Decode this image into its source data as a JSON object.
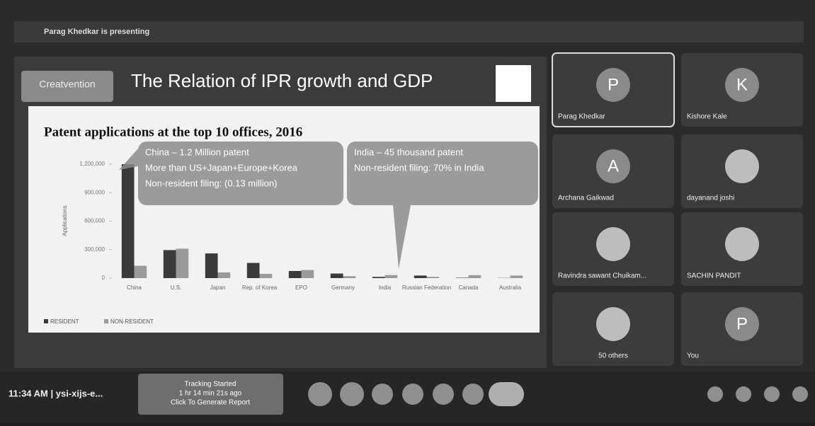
{
  "banner": "Parag Khedkar is presenting",
  "slide": {
    "logo": "Creatvention",
    "title": "The Relation of IPR growth and GDP",
    "callouts": [
      [
        "China – 1.2 Million patent",
        "More than US+Japan+Europe+Korea",
        "Non-resident filing: (0.13 million)"
      ],
      [
        "India – 45 thousand patent",
        "Non-resident filing: 70% in India"
      ]
    ]
  },
  "chart_data": {
    "type": "bar",
    "title": "Patent applications at the top 10 offices, 2016",
    "y_label": "Applications",
    "categories": [
      "China",
      "U.S.",
      "Japan",
      "Rep. of Korea",
      "EPO",
      "Germany",
      "India",
      "Russian Federation",
      "Canada",
      "Australia"
    ],
    "series": [
      {
        "name": "RESIDENT",
        "color": "#3a3a3a",
        "values": [
          1200000,
          295000,
          260000,
          160000,
          75000,
          48000,
          13000,
          27000,
          4000,
          2000
        ]
      },
      {
        "name": "NON-RESIDENT",
        "color": "#9a9a9a",
        "values": [
          130000,
          310000,
          60000,
          45000,
          85000,
          20000,
          32000,
          14000,
          31000,
          27000
        ]
      }
    ],
    "ylim": [
      0,
      1200000
    ],
    "yticks": [
      0,
      {
        "value": 300000,
        "label": "300,000"
      },
      {
        "value": 600000,
        "label": "600,000"
      },
      {
        "value": 900000,
        "label": "900,000"
      },
      {
        "value": 1200000,
        "label": "1,200,000"
      }
    ],
    "legend": "bottom-left"
  },
  "participants": [
    {
      "name": "Parag Khedkar",
      "initial": "P"
    },
    {
      "name": "Kishore Kale",
      "initial": "K"
    },
    {
      "name": "Archana Gaikwad",
      "initial": "A"
    },
    {
      "name": "dayanand joshi"
    },
    {
      "name": "Ravindra sawant Chuikam..."
    },
    {
      "name": "SACHIN PANDIT"
    },
    {
      "name": "50 others"
    },
    {
      "name": "You",
      "initial": "P"
    }
  ],
  "footer": {
    "clock": "11:34 AM | ysi-xijs-e...",
    "tracking": [
      "Tracking Started",
      "1 hr 14 min 21s ago",
      "Click To Generate Report"
    ]
  }
}
